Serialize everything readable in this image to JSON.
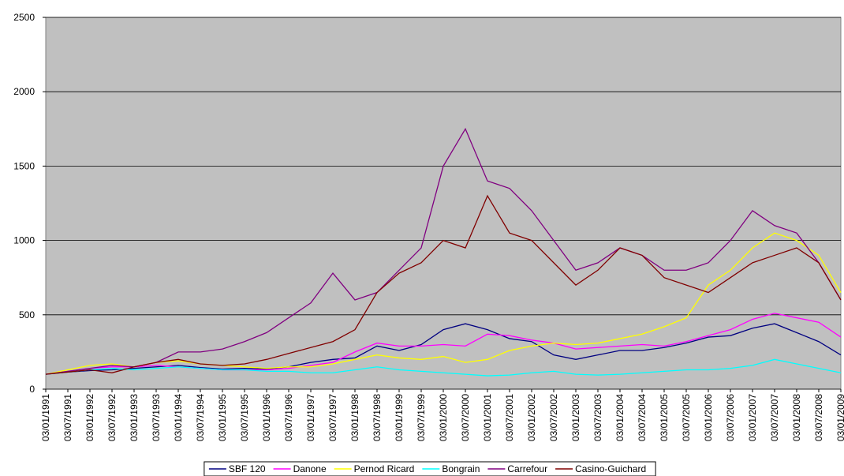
{
  "chart_data": {
    "type": "line",
    "categories": [
      "03/01/1991",
      "03/07/1991",
      "03/01/1992",
      "03/07/1992",
      "03/01/1993",
      "03/07/1993",
      "03/01/1994",
      "03/07/1994",
      "03/01/1995",
      "03/07/1995",
      "03/01/1996",
      "03/07/1996",
      "03/01/1997",
      "03/07/1997",
      "03/01/1998",
      "03/07/1998",
      "03/01/1999",
      "03/07/1999",
      "03/01/2000",
      "03/07/2000",
      "03/01/2001",
      "03/07/2001",
      "03/01/2002",
      "03/07/2002",
      "03/01/2003",
      "03/07/2003",
      "03/01/2004",
      "03/07/2004",
      "03/01/2005",
      "03/07/2005",
      "03/01/2006",
      "03/07/2006",
      "03/01/2007",
      "03/07/2007",
      "03/01/2008",
      "03/07/2008",
      "03/01/2009"
    ],
    "series": [
      {
        "name": "SBF 120",
        "color": "#000080",
        "values": [
          100,
          115,
          125,
          130,
          140,
          150,
          160,
          145,
          135,
          140,
          135,
          150,
          180,
          200,
          210,
          290,
          260,
          300,
          400,
          440,
          400,
          340,
          320,
          230,
          200,
          230,
          260,
          260,
          280,
          310,
          350,
          360,
          410,
          440,
          380,
          320,
          230
        ]
      },
      {
        "name": "Danone",
        "color": "#ff00ff",
        "values": [
          100,
          120,
          140,
          150,
          150,
          160,
          150,
          140,
          130,
          130,
          130,
          140,
          160,
          180,
          250,
          310,
          290,
          290,
          300,
          290,
          370,
          360,
          330,
          310,
          270,
          280,
          290,
          300,
          290,
          320,
          360,
          400,
          470,
          510,
          480,
          450,
          350
        ]
      },
      {
        "name": "Pernod Ricard",
        "color": "#ffff00",
        "values": [
          100,
          130,
          160,
          170,
          150,
          180,
          190,
          170,
          160,
          150,
          140,
          150,
          150,
          170,
          200,
          230,
          210,
          200,
          220,
          180,
          200,
          260,
          290,
          310,
          300,
          310,
          340,
          370,
          420,
          480,
          700,
          800,
          950,
          1050,
          1000,
          900,
          650
        ]
      },
      {
        "name": "Bongrain",
        "color": "#00ffff",
        "values": [
          100,
          115,
          130,
          140,
          130,
          140,
          150,
          140,
          130,
          130,
          120,
          120,
          110,
          110,
          130,
          150,
          130,
          120,
          110,
          100,
          90,
          95,
          110,
          120,
          100,
          95,
          100,
          110,
          120,
          130,
          130,
          140,
          160,
          200,
          170,
          140,
          110
        ]
      },
      {
        "name": "Carrefour",
        "color": "#800080",
        "values": [
          100,
          120,
          140,
          160,
          150,
          180,
          250,
          250,
          270,
          320,
          380,
          480,
          580,
          780,
          600,
          650,
          800,
          950,
          1500,
          1750,
          1400,
          1350,
          1200,
          1000,
          800,
          850,
          950,
          900,
          800,
          800,
          850,
          1000,
          1200,
          1100,
          1050,
          850,
          600
        ]
      },
      {
        "name": "Casino-Guichard",
        "color": "#800000",
        "values": [
          100,
          115,
          130,
          110,
          150,
          180,
          200,
          170,
          160,
          170,
          200,
          240,
          280,
          320,
          400,
          650,
          780,
          850,
          1000,
          950,
          1300,
          1050,
          1000,
          850,
          700,
          800,
          950,
          900,
          750,
          700,
          650,
          750,
          850,
          900,
          950,
          850,
          600
        ]
      }
    ],
    "ylim": [
      0,
      2500
    ],
    "yticks": [
      0,
      500,
      1000,
      1500,
      2000,
      2500
    ],
    "grid": true,
    "legend": "bottom"
  }
}
